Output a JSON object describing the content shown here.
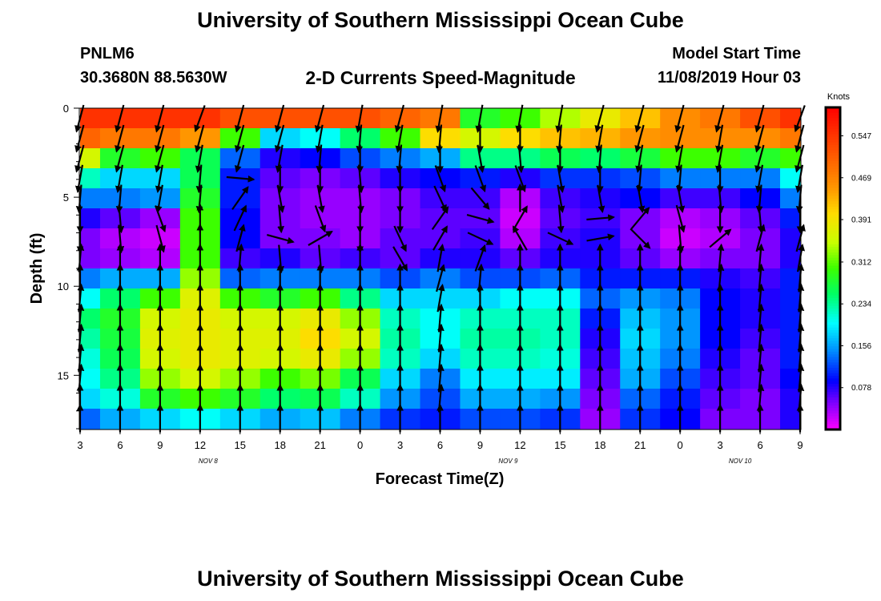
{
  "header": {
    "title": "University of Southern Mississippi Ocean Cube",
    "station_id": "PNLM6",
    "station_coords": "30.3680N 88.5630W",
    "chart_title": "2-D Currents Speed-Magnitude",
    "model_label": "Model Start Time",
    "model_time": "11/08/2019 Hour 03"
  },
  "footer": {
    "title": "University of Southern Mississippi Ocean Cube"
  },
  "chart_data": {
    "type": "heatmap",
    "title": "2-D Currents Speed-Magnitude",
    "xlabel": "Forecast Time(Z)",
    "ylabel": "Depth (ft)",
    "ylim": [
      0,
      18
    ],
    "x_tick_labels": [
      "3",
      "6",
      "9",
      "12",
      "15",
      "18",
      "21",
      "0",
      "3",
      "6",
      "9",
      "12",
      "15",
      "18",
      "21",
      "0",
      "3",
      "6",
      "9"
    ],
    "y_ticks": [
      0,
      5,
      10,
      15
    ],
    "date_labels": [
      {
        "text": "NOV 8",
        "hour_index": 3.2
      },
      {
        "text": "NOV 9",
        "hour_index": 10.7
      },
      {
        "text": "NOV 10",
        "hour_index": 16.5
      }
    ],
    "colorbar": {
      "unit": "Knots",
      "ticks": [
        "0.547",
        "0.469",
        "0.391",
        "0.312",
        "0.234",
        "0.156",
        "0.078"
      ],
      "range": [
        0,
        0.6
      ]
    },
    "columns": [
      {
        "time": "3",
        "speeds": [
          0.55,
          0.5,
          0.36,
          0.22,
          0.14,
          0.08,
          0.05,
          0.05,
          0.14,
          0.2,
          0.25,
          0.23,
          0.21,
          0.2,
          0.18,
          0.13
        ],
        "dirs": [
          195,
          195,
          195,
          190,
          185,
          180,
          180,
          5,
          0,
          5,
          5,
          5,
          5,
          5,
          0,
          0
        ]
      },
      {
        "time": "6",
        "speeds": [
          0.55,
          0.48,
          0.28,
          0.18,
          0.14,
          0.06,
          0.03,
          0.04,
          0.16,
          0.25,
          0.28,
          0.27,
          0.26,
          0.24,
          0.21,
          0.16
        ],
        "dirs": [
          195,
          195,
          195,
          190,
          185,
          175,
          175,
          0,
          0,
          0,
          0,
          0,
          0,
          0,
          0,
          0
        ]
      },
      {
        "time": "9",
        "speeds": [
          0.55,
          0.48,
          0.3,
          0.18,
          0.15,
          0.04,
          0.02,
          0.03,
          0.16,
          0.3,
          0.36,
          0.37,
          0.36,
          0.33,
          0.28,
          0.18
        ],
        "dirs": [
          195,
          195,
          195,
          190,
          190,
          160,
          165,
          0,
          0,
          0,
          0,
          0,
          0,
          0,
          0,
          0
        ]
      },
      {
        "time": "12",
        "speeds": [
          0.55,
          0.45,
          0.26,
          0.26,
          0.28,
          0.3,
          0.3,
          0.3,
          0.33,
          0.37,
          0.38,
          0.38,
          0.38,
          0.36,
          0.3,
          0.2
        ],
        "dirs": [
          200,
          195,
          190,
          185,
          185,
          0,
          0,
          0,
          0,
          0,
          0,
          0,
          0,
          0,
          0,
          0
        ]
      },
      {
        "time": "15",
        "speeds": [
          0.52,
          0.3,
          0.13,
          0.1,
          0.1,
          0.09,
          0.09,
          0.07,
          0.13,
          0.3,
          0.36,
          0.37,
          0.37,
          0.33,
          0.28,
          0.18
        ],
        "dirs": [
          195,
          195,
          195,
          95,
          35,
          25,
          15,
          5,
          0,
          0,
          0,
          0,
          0,
          0,
          0,
          0
        ]
      },
      {
        "time": "18",
        "speeds": [
          0.52,
          0.18,
          0.08,
          0.06,
          0.05,
          0.05,
          0.05,
          0.08,
          0.14,
          0.28,
          0.36,
          0.37,
          0.36,
          0.3,
          0.25,
          0.16
        ],
        "dirs": [
          195,
          195,
          190,
          180,
          170,
          175,
          105,
          175,
          0,
          0,
          0,
          0,
          0,
          0,
          0,
          0
        ]
      },
      {
        "time": "21",
        "speeds": [
          0.52,
          0.2,
          0.09,
          0.05,
          0.04,
          0.04,
          0.05,
          0.06,
          0.14,
          0.3,
          0.38,
          0.4,
          0.38,
          0.32,
          0.26,
          0.17
        ],
        "dirs": [
          195,
          190,
          185,
          180,
          170,
          160,
          60,
          175,
          0,
          0,
          0,
          0,
          0,
          0,
          0,
          0
        ]
      },
      {
        "time": "0",
        "speeds": [
          0.52,
          0.25,
          0.12,
          0.06,
          0.04,
          0.04,
          0.04,
          0.07,
          0.14,
          0.24,
          0.33,
          0.36,
          0.33,
          0.26,
          0.22,
          0.14
        ],
        "dirs": [
          190,
          185,
          180,
          175,
          175,
          180,
          180,
          0,
          0,
          0,
          0,
          0,
          0,
          0,
          0,
          0
        ]
      },
      {
        "time": "3",
        "speeds": [
          0.5,
          0.3,
          0.14,
          0.08,
          0.05,
          0.05,
          0.06,
          0.06,
          0.12,
          0.18,
          0.22,
          0.23,
          0.22,
          0.18,
          0.15,
          0.11
        ],
        "dirs": [
          195,
          190,
          185,
          180,
          180,
          180,
          155,
          150,
          0,
          0,
          0,
          0,
          0,
          0,
          0,
          0
        ]
      },
      {
        "time": "6",
        "speeds": [
          0.48,
          0.4,
          0.16,
          0.09,
          0.07,
          0.06,
          0.06,
          0.08,
          0.14,
          0.18,
          0.2,
          0.2,
          0.18,
          0.14,
          0.12,
          0.1
        ],
        "dirs": [
          190,
          185,
          180,
          160,
          155,
          35,
          30,
          10,
          15,
          10,
          5,
          5,
          5,
          5,
          5,
          0
        ]
      },
      {
        "time": "9",
        "speeds": [
          0.28,
          0.36,
          0.24,
          0.1,
          0.07,
          0.06,
          0.07,
          0.08,
          0.12,
          0.18,
          0.22,
          0.23,
          0.22,
          0.19,
          0.16,
          0.12
        ],
        "dirs": [
          190,
          180,
          170,
          160,
          140,
          105,
          115,
          20,
          5,
          0,
          0,
          0,
          0,
          0,
          0,
          0
        ]
      },
      {
        "time": "12",
        "speeds": [
          0.3,
          0.4,
          0.24,
          0.08,
          0.03,
          0.02,
          0.03,
          0.06,
          0.12,
          0.2,
          0.22,
          0.23,
          0.22,
          0.19,
          0.16,
          0.12
        ],
        "dirs": [
          190,
          180,
          175,
          160,
          0,
          30,
          330,
          0,
          0,
          0,
          0,
          0,
          0,
          0,
          0,
          0
        ]
      },
      {
        "time": "15",
        "speeds": [
          0.34,
          0.42,
          0.26,
          0.11,
          0.07,
          0.06,
          0.07,
          0.08,
          0.13,
          0.2,
          0.22,
          0.22,
          0.21,
          0.19,
          0.15,
          0.11
        ],
        "dirs": [
          190,
          185,
          180,
          170,
          170,
          175,
          115,
          0,
          0,
          0,
          0,
          0,
          0,
          0,
          0,
          0
        ]
      },
      {
        "time": "18",
        "speeds": [
          0.38,
          0.43,
          0.25,
          0.11,
          0.08,
          0.07,
          0.08,
          0.08,
          0.1,
          0.13,
          0.1,
          0.08,
          0.07,
          0.06,
          0.05,
          0.04
        ],
        "dirs": [
          195,
          190,
          185,
          180,
          170,
          85,
          80,
          0,
          0,
          0,
          0,
          0,
          0,
          0,
          0,
          0
        ]
      },
      {
        "time": "21",
        "speeds": [
          0.42,
          0.45,
          0.27,
          0.12,
          0.09,
          0.05,
          0.05,
          0.06,
          0.1,
          0.15,
          0.17,
          0.18,
          0.17,
          0.16,
          0.13,
          0.11
        ],
        "dirs": [
          195,
          195,
          190,
          185,
          170,
          40,
          135,
          0,
          0,
          0,
          0,
          0,
          0,
          0,
          0,
          0
        ]
      },
      {
        "time": "0",
        "speeds": [
          0.46,
          0.46,
          0.3,
          0.14,
          0.07,
          0.03,
          0.02,
          0.04,
          0.1,
          0.14,
          0.15,
          0.15,
          0.14,
          0.12,
          0.1,
          0.09
        ],
        "dirs": [
          195,
          195,
          190,
          185,
          170,
          165,
          175,
          0,
          0,
          0,
          0,
          0,
          0,
          0,
          0,
          0
        ]
      },
      {
        "time": "3",
        "speeds": [
          0.48,
          0.46,
          0.3,
          0.14,
          0.07,
          0.04,
          0.03,
          0.05,
          0.08,
          0.09,
          0.09,
          0.09,
          0.08,
          0.07,
          0.06,
          0.05
        ],
        "dirs": [
          195,
          190,
          190,
          180,
          175,
          180,
          50,
          5,
          5,
          0,
          0,
          0,
          0,
          0,
          0,
          0
        ]
      },
      {
        "time": "6",
        "speeds": [
          0.52,
          0.46,
          0.28,
          0.14,
          0.09,
          0.06,
          0.05,
          0.05,
          0.07,
          0.08,
          0.08,
          0.07,
          0.06,
          0.06,
          0.05,
          0.05
        ],
        "dirs": [
          195,
          195,
          195,
          190,
          185,
          175,
          15,
          5,
          5,
          5,
          5,
          5,
          5,
          5,
          5,
          0
        ]
      },
      {
        "time": "9",
        "speeds": [
          0.55,
          0.48,
          0.3,
          0.2,
          0.14,
          0.1,
          0.08,
          0.08,
          0.1,
          0.1,
          0.1,
          0.1,
          0.1,
          0.09,
          0.08,
          0.08
        ],
        "dirs": [
          200,
          195,
          195,
          190,
          185,
          180,
          15,
          10,
          5,
          5,
          5,
          5,
          5,
          5,
          5,
          0
        ]
      }
    ]
  }
}
